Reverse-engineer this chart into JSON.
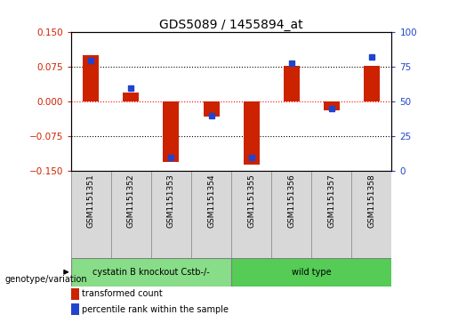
{
  "title": "GDS5089 / 1455894_at",
  "samples": [
    "GSM1151351",
    "GSM1151352",
    "GSM1151353",
    "GSM1151354",
    "GSM1151355",
    "GSM1151356",
    "GSM1151357",
    "GSM1151358"
  ],
  "red_values": [
    0.1,
    0.02,
    -0.13,
    -0.032,
    -0.135,
    0.078,
    -0.018,
    0.078
  ],
  "blue_values": [
    80,
    60,
    10,
    40,
    10,
    78,
    45,
    82
  ],
  "group1_label": "cystatin B knockout Cstb-/-",
  "group2_label": "wild type",
  "group1_count": 4,
  "group2_count": 4,
  "genotype_label": "genotype/variation",
  "legend_red": "transformed count",
  "legend_blue": "percentile rank within the sample",
  "ylim_left": [
    -0.15,
    0.15
  ],
  "ylim_right": [
    0,
    100
  ],
  "yticks_left": [
    -0.15,
    -0.075,
    0.0,
    0.075,
    0.15
  ],
  "yticks_right": [
    0,
    25,
    50,
    75,
    100
  ],
  "red_color": "#cc2200",
  "blue_color": "#2244cc",
  "group1_color": "#88dd88",
  "group2_color": "#55cc55",
  "cell_bg": "#d8d8d8",
  "bar_width": 0.4,
  "blue_marker_size": 5
}
